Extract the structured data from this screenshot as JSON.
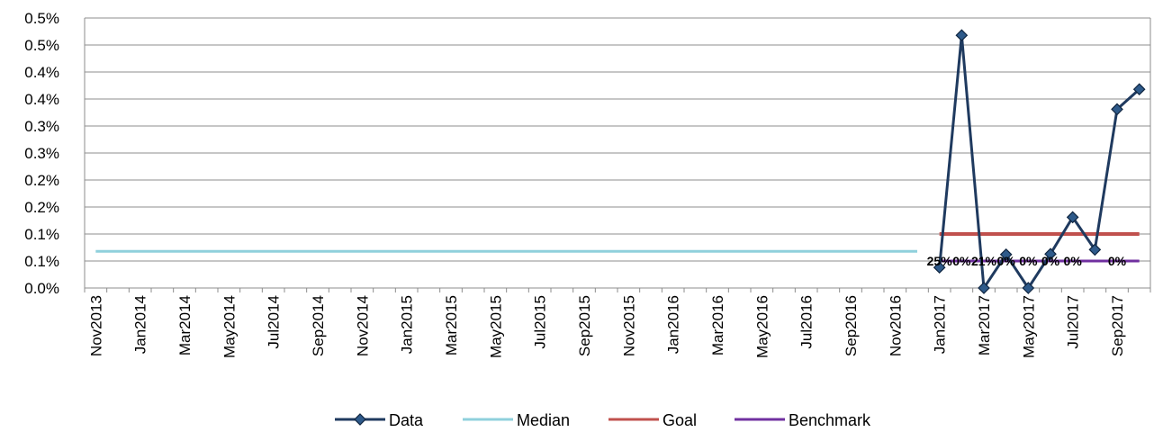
{
  "chart_data": {
    "type": "line",
    "title": "",
    "xlabel": "",
    "ylabel": "",
    "ylim": [
      0,
      0.005
    ],
    "y_ticks": [
      0,
      0.0005,
      0.001,
      0.0015,
      0.002,
      0.0025,
      0.003,
      0.0035,
      0.004,
      0.0045,
      0.005
    ],
    "y_tick_labels": [
      "0.0%",
      "0.1%",
      "0.1%",
      "0.2%",
      "0.2%",
      "0.3%",
      "0.3%",
      "0.4%",
      "0.4%",
      "0.5%",
      "0.5%"
    ],
    "grid": true,
    "legend_position": "bottom",
    "categories": [
      "Nov2013",
      "Dec2013",
      "Jan2014",
      "Feb2014",
      "Mar2014",
      "Apr2014",
      "May2014",
      "Jun2014",
      "Jul2014",
      "Aug2014",
      "Sep2014",
      "Oct2014",
      "Nov2014",
      "Dec2014",
      "Jan2015",
      "Feb2015",
      "Mar2015",
      "Apr2015",
      "May2015",
      "Jun2015",
      "Jul2015",
      "Aug2015",
      "Sep2015",
      "Oct2015",
      "Nov2015",
      "Dec2015",
      "Jan2016",
      "Feb2016",
      "Mar2016",
      "Apr2016",
      "May2016",
      "Jun2016",
      "Jul2016",
      "Aug2016",
      "Sep2016",
      "Oct2016",
      "Nov2016",
      "Dec2016",
      "Jan2017",
      "Feb2017",
      "Mar2017",
      "Apr2017",
      "May2017",
      "Jun2017",
      "Jul2017",
      "Aug2017",
      "Sep2017",
      "Oct2017"
    ],
    "x_tick_labels": [
      "Nov2013",
      "Jan2014",
      "Mar2014",
      "May2014",
      "Jul2014",
      "Sep2014",
      "Nov2014",
      "Jan2015",
      "Mar2015",
      "May2015",
      "Jul2015",
      "Sep2015",
      "Nov2015",
      "Jan2016",
      "Mar2016",
      "May2016",
      "Jul2016",
      "Sep2016",
      "Nov2016",
      "Jan2017",
      "Mar2017",
      "May2017",
      "Jul2017",
      "Sep2017"
    ],
    "series": [
      {
        "name": "Data",
        "color": "#1f3a5f",
        "marker": "diamond",
        "x": [
          "Jan2017",
          "Feb2017",
          "Mar2017",
          "Apr2017",
          "May2017",
          "Jun2017",
          "Jul2017",
          "Aug2017",
          "Sep2017",
          "Oct2017"
        ],
        "values": [
          0.00038,
          0.00468,
          0.0,
          0.00062,
          0.0,
          0.00063,
          0.00131,
          0.00071,
          0.00331,
          0.00368
        ]
      },
      {
        "name": "Median",
        "color": "#8fd0dc",
        "x": [
          "Nov2013",
          "Dec2016"
        ],
        "values": [
          0.00068,
          0.00068
        ]
      },
      {
        "name": "Goal",
        "color": "#c0504d",
        "x": [
          "Jan2017",
          "Oct2017"
        ],
        "values": [
          0.001,
          0.001
        ]
      },
      {
        "name": "Benchmark",
        "color": "#7030a0",
        "x": [
          "Jan2017",
          "Oct2017"
        ],
        "values": [
          0.0005,
          0.0005
        ]
      }
    ],
    "annotations": [
      {
        "x": "Jan2017",
        "text": "25%"
      },
      {
        "x": "Feb2017",
        "text": "0%"
      },
      {
        "x": "Mar2017",
        "text": "21%"
      },
      {
        "x": "Apr2017",
        "text": "0%"
      },
      {
        "x": "May2017",
        "text": "0%"
      },
      {
        "x": "Jun2017",
        "text": "0%"
      },
      {
        "x": "Jul2017",
        "text": "0%"
      },
      {
        "x": "Sep2017",
        "text": "0%"
      }
    ]
  }
}
